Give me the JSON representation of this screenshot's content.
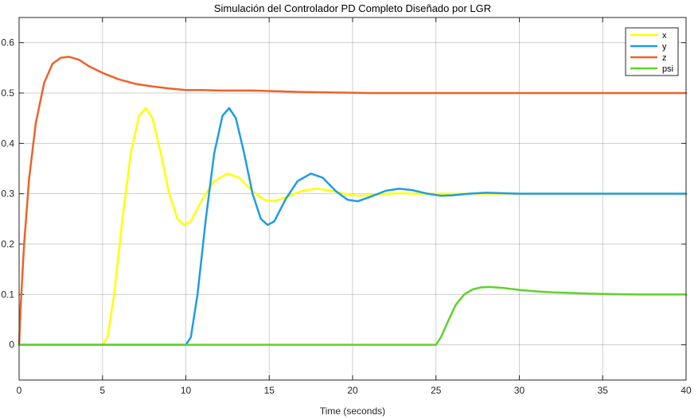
{
  "chart_data": {
    "type": "line",
    "title": "Simulación del Controlador PD Completo Diseñado por LGR",
    "xlabel": "Time (seconds)",
    "ylabel": "",
    "xlim": [
      0,
      40
    ],
    "ylim": [
      -0.07,
      0.65
    ],
    "xticks": [
      0,
      5,
      10,
      15,
      20,
      25,
      30,
      35,
      40
    ],
    "yticks": [
      0,
      0.1,
      0.2,
      0.3,
      0.4,
      0.5,
      0.6
    ],
    "ytick_labels": [
      "0",
      "0.1",
      "0.2",
      "0.3",
      "0.4",
      "0.5",
      "0.6"
    ],
    "grid": true,
    "legend_position": "top-right",
    "series": [
      {
        "name": "x",
        "color": "#ffff00",
        "points": [
          [
            0,
            0
          ],
          [
            5,
            0
          ],
          [
            5.3,
            0.015
          ],
          [
            5.7,
            0.1
          ],
          [
            6.2,
            0.25
          ],
          [
            6.7,
            0.38
          ],
          [
            7.2,
            0.455
          ],
          [
            7.6,
            0.47
          ],
          [
            8.0,
            0.45
          ],
          [
            8.5,
            0.38
          ],
          [
            9.0,
            0.3
          ],
          [
            9.5,
            0.25
          ],
          [
            9.9,
            0.238
          ],
          [
            10.3,
            0.245
          ],
          [
            11,
            0.29
          ],
          [
            11.7,
            0.325
          ],
          [
            12.5,
            0.34
          ],
          [
            13.2,
            0.332
          ],
          [
            14,
            0.305
          ],
          [
            14.7,
            0.288
          ],
          [
            15.3,
            0.285
          ],
          [
            16,
            0.293
          ],
          [
            17,
            0.306
          ],
          [
            17.8,
            0.31
          ],
          [
            18.6,
            0.307
          ],
          [
            19.5,
            0.3
          ],
          [
            20.3,
            0.296
          ],
          [
            21,
            0.297
          ],
          [
            22,
            0.3
          ],
          [
            23,
            0.301
          ],
          [
            24,
            0.3
          ],
          [
            25,
            0.3
          ],
          [
            30,
            0.3
          ],
          [
            40,
            0.3
          ]
        ]
      },
      {
        "name": "y",
        "color": "#1f9ce6",
        "points": [
          [
            0,
            0
          ],
          [
            10,
            0
          ],
          [
            10.3,
            0.015
          ],
          [
            10.7,
            0.1
          ],
          [
            11.2,
            0.25
          ],
          [
            11.7,
            0.38
          ],
          [
            12.2,
            0.455
          ],
          [
            12.6,
            0.47
          ],
          [
            13.0,
            0.45
          ],
          [
            13.5,
            0.38
          ],
          [
            14.0,
            0.3
          ],
          [
            14.5,
            0.25
          ],
          [
            14.9,
            0.238
          ],
          [
            15.3,
            0.245
          ],
          [
            16,
            0.29
          ],
          [
            16.7,
            0.325
          ],
          [
            17.5,
            0.34
          ],
          [
            18.2,
            0.332
          ],
          [
            19,
            0.305
          ],
          [
            19.7,
            0.288
          ],
          [
            20.3,
            0.285
          ],
          [
            21,
            0.293
          ],
          [
            22,
            0.306
          ],
          [
            22.8,
            0.31
          ],
          [
            23.6,
            0.307
          ],
          [
            24.5,
            0.3
          ],
          [
            25.3,
            0.296
          ],
          [
            26,
            0.297
          ],
          [
            27,
            0.3
          ],
          [
            28,
            0.302
          ],
          [
            29,
            0.301
          ],
          [
            30,
            0.3
          ],
          [
            40,
            0.3
          ]
        ]
      },
      {
        "name": "z",
        "color": "#ee6229",
        "points": [
          [
            0,
            0
          ],
          [
            0.1,
            0.08
          ],
          [
            0.3,
            0.2
          ],
          [
            0.6,
            0.33
          ],
          [
            1.0,
            0.44
          ],
          [
            1.5,
            0.52
          ],
          [
            2.0,
            0.558
          ],
          [
            2.5,
            0.57
          ],
          [
            3.0,
            0.572
          ],
          [
            3.6,
            0.566
          ],
          [
            4.2,
            0.553
          ],
          [
            5.0,
            0.54
          ],
          [
            6.0,
            0.527
          ],
          [
            7.0,
            0.518
          ],
          [
            8.0,
            0.513
          ],
          [
            9.0,
            0.509
          ],
          [
            10,
            0.506
          ],
          [
            11,
            0.506
          ],
          [
            12,
            0.505
          ],
          [
            13,
            0.505
          ],
          [
            14,
            0.505
          ],
          [
            15,
            0.504
          ],
          [
            17,
            0.502
          ],
          [
            19,
            0.501
          ],
          [
            21,
            0.5
          ],
          [
            25,
            0.5
          ],
          [
            30,
            0.5
          ],
          [
            40,
            0.5
          ]
        ]
      },
      {
        "name": "psi",
        "color": "#5ed22c",
        "points": [
          [
            0,
            0
          ],
          [
            25,
            0
          ],
          [
            25.3,
            0.015
          ],
          [
            25.7,
            0.045
          ],
          [
            26.2,
            0.08
          ],
          [
            26.7,
            0.1
          ],
          [
            27.2,
            0.11
          ],
          [
            27.7,
            0.114
          ],
          [
            28.2,
            0.115
          ],
          [
            29,
            0.113
          ],
          [
            30,
            0.109
          ],
          [
            31,
            0.106
          ],
          [
            32,
            0.104
          ],
          [
            33,
            0.103
          ],
          [
            34,
            0.102
          ],
          [
            35,
            0.101
          ],
          [
            37,
            0.1
          ],
          [
            40,
            0.1
          ]
        ]
      }
    ]
  }
}
